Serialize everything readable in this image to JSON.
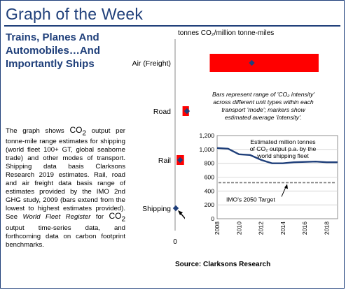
{
  "title_bar": {
    "title": "Graph of the Week"
  },
  "headline": "Trains, Planes And Automobiles…And Importantly Ships",
  "body": {
    "p1": "The graph shows ",
    "co2_a": "CO",
    "p2": " output per tonne-mile range estimates for shipping (world fleet 100+ GT, global seaborne trade) and other modes of transport. Shipping data basis Clarksons Research 2019 estimates. Rail, road and air freight data basis range of estimates provided by the IMO 2nd GHG study, 2009 (bars extend from the lowest to highest estimates provided). See ",
    "em1": "World Fleet Register",
    "p3": " for ",
    "co2_b": "CO",
    "p4": " output time-series data, and forthcoming data on carbon footprint benchmarks."
  },
  "chart_data": [
    {
      "type": "bar",
      "orientation": "horizontal",
      "subtype": "range_bar_with_markers",
      "title": "tonnes CO₂/million tonne-miles",
      "categories": [
        "Air (Freight)",
        "Road",
        "Rail",
        "Shipping"
      ],
      "ranges": [
        [
          700,
          2900
        ],
        [
          150,
          280
        ],
        [
          30,
          180
        ],
        [
          0,
          14
        ]
      ],
      "markers": [
        1550,
        240,
        100,
        14
      ],
      "xlim": [
        0,
        3000
      ],
      "xticks": [
        "0",
        "500",
        "1,000",
        "1,500",
        "2,000",
        "2,500",
        "3,000"
      ],
      "bar_color": "#ff0000",
      "marker_color": "#1f3f7a",
      "annotations": {
        "note": "Bars represent range of 'CO₂ intensity' across different unit types within each transport 'mode'; markers show estimated average 'intensity'.",
        "shipping_label": "14"
      }
    },
    {
      "type": "line",
      "title": "Estimated million tonnes of CO₂ output p.a. by the world shipping fleet",
      "x": [
        2008,
        2009,
        2010,
        2011,
        2012,
        2013,
        2014,
        2015,
        2016,
        2017,
        2018,
        2019
      ],
      "series": [
        {
          "values": [
            1020,
            1010,
            930,
            920,
            850,
            800,
            800,
            815,
            820,
            825,
            815,
            815
          ]
        }
      ],
      "target": {
        "label": "IMO's 2050 Target",
        "value": 520
      },
      "xticks": [
        "2008",
        "2010",
        "2012",
        "2014",
        "2016",
        "2018"
      ],
      "ylim": [
        0,
        1200
      ],
      "yticks": [
        "0",
        "200",
        "400",
        "600",
        "800",
        "1,000",
        "1,200"
      ],
      "line_color": "#1f3f7a",
      "grid": true
    }
  ],
  "source": "Source: Clarksons Research"
}
